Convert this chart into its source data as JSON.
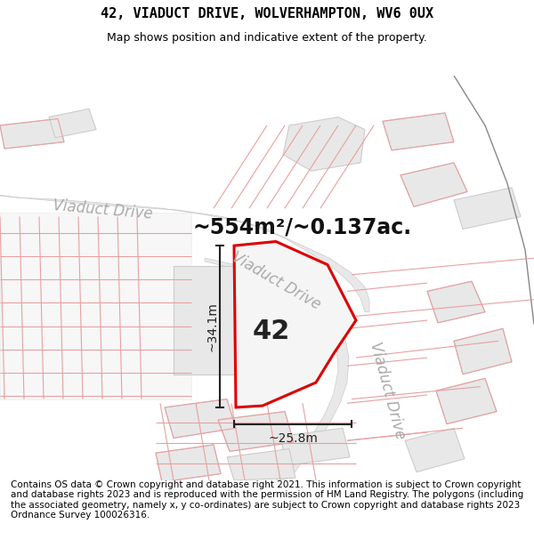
{
  "title": "42, VIADUCT DRIVE, WOLVERHAMPTON, WV6 0UX",
  "subtitle": "Map shows position and indicative extent of the property.",
  "area_text": "~554m²/~0.137ac.",
  "label_42": "42",
  "dim_height": "~34.1m",
  "dim_width": "~25.8m",
  "road_label_upper_left": "Viaduct Drive",
  "road_label_lower": "Viaduct Drive",
  "road_label_right": "Viaduct Drive",
  "footer": "Contains OS data © Crown copyright and database right 2021. This information is subject to Crown copyright and database rights 2023 and is reproduced with the permission of HM Land Registry. The polygons (including the associated geometry, namely x, y co-ordinates) are subject to Crown copyright and database rights 2023 Ordnance Survey 100026316.",
  "bg_color": "#ffffff",
  "map_bg": "#ffffff",
  "road_fill": "#e8e8e8",
  "road_edge": "#cccccc",
  "block_fill": "#e8e8e8",
  "block_edge": "#cccccc",
  "property_outline_color": "#dd0000",
  "property_fill": "#f5f5f5",
  "dim_color": "#222222",
  "pink": "#e8a0a0",
  "title_fontsize": 11,
  "subtitle_fontsize": 9,
  "area_fontsize": 17,
  "label_fontsize": 22,
  "dim_fontsize": 10,
  "road_fontsize": 13,
  "footer_fontsize": 7.5
}
